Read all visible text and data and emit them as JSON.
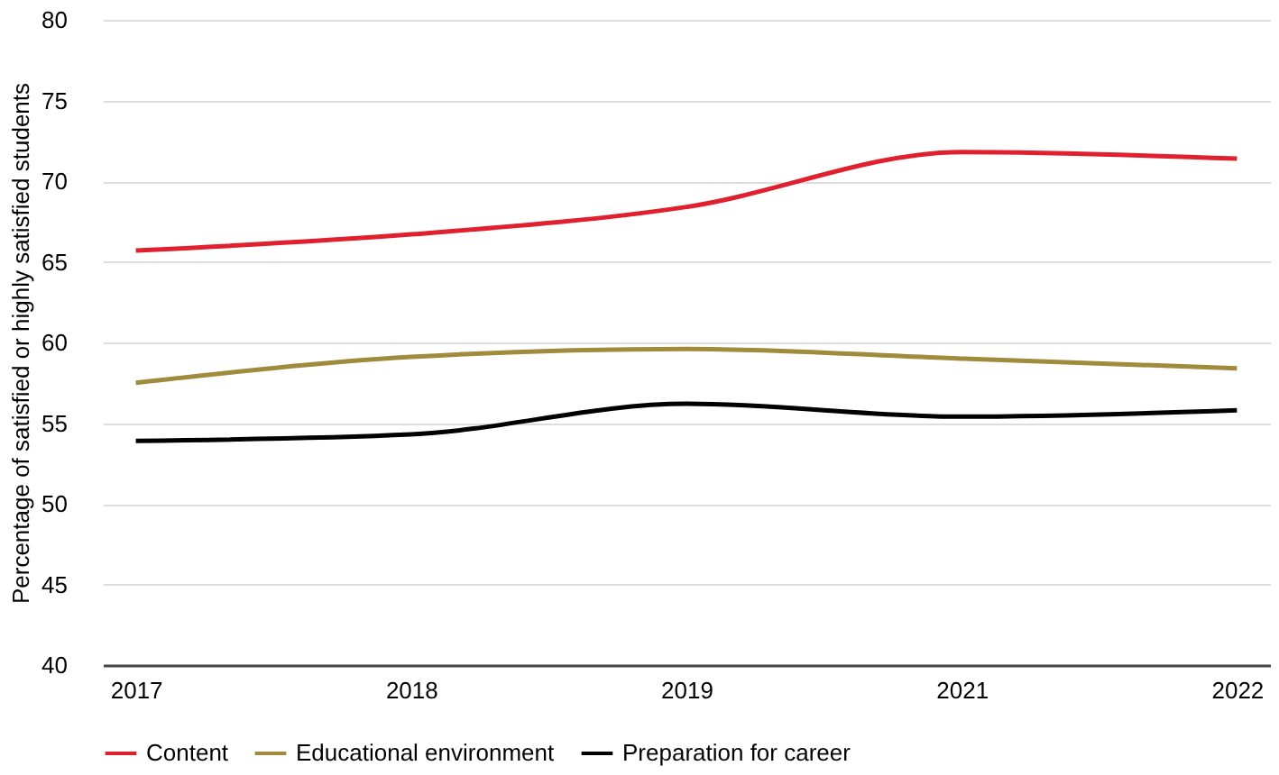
{
  "chart_data": {
    "type": "line",
    "ylabel": "Percentage of satisfied or highly satisfied students",
    "categories": [
      "2017",
      "2018",
      "2019",
      "2021",
      "2022"
    ],
    "series": [
      {
        "name": "Content",
        "color": "#e0202e",
        "values": [
          65.7,
          66.7,
          68.4,
          71.8,
          71.4
        ]
      },
      {
        "name": "Educational environment",
        "color": "#a08a3c",
        "values": [
          57.5,
          59.1,
          59.6,
          59.0,
          58.4
        ]
      },
      {
        "name": "Preparation for career",
        "color": "#000000",
        "values": [
          53.9,
          54.3,
          56.2,
          55.4,
          55.8
        ]
      }
    ],
    "ylim": [
      40,
      80
    ],
    "yticks": [
      40,
      45,
      50,
      55,
      60,
      65,
      70,
      75,
      80
    ],
    "grid": "y",
    "legend": "bottom left",
    "marker": "none",
    "line_style": "solid"
  }
}
